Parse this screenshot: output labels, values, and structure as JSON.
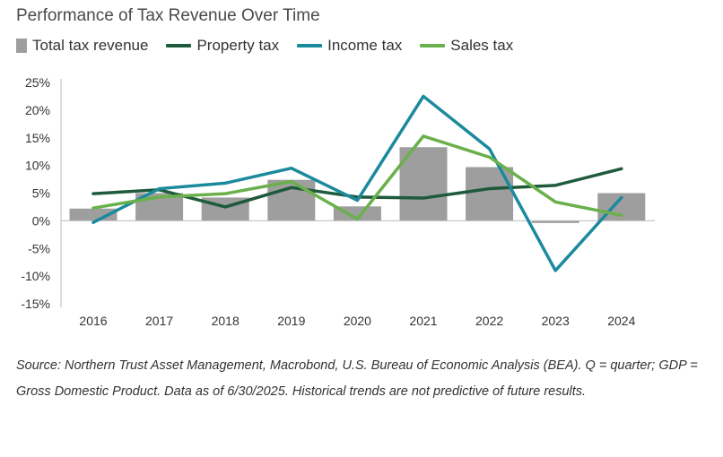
{
  "title": "Performance of Tax Revenue Over Time",
  "source": "Source: Northern Trust Asset Management, Macrobond, U.S. Bureau of Economic Analysis (BEA). Q = quarter; GDP = Gross Domestic Product. Data as of 6/30/2025. Historical trends are not predictive of future results.",
  "legend": [
    {
      "name": "Total tax revenue",
      "color": "#9e9e9e",
      "kind": "bar"
    },
    {
      "name": "Property tax",
      "color": "#1e5a3c",
      "kind": "line"
    },
    {
      "name": "Income tax",
      "color": "#1b8a9c",
      "kind": "line"
    },
    {
      "name": "Sales tax",
      "color": "#6ab04c",
      "kind": "line"
    }
  ],
  "chart_data": {
    "type": "bar",
    "title": "Performance of Tax Revenue Over Time",
    "categories": [
      "2016",
      "2017",
      "2018",
      "2019",
      "2020",
      "2021",
      "2022",
      "2023",
      "2024"
    ],
    "ylim": [
      -15,
      25
    ],
    "yticks": [
      25,
      20,
      15,
      10,
      5,
      0,
      -5,
      -10,
      -15
    ],
    "ytick_labels": [
      "25%",
      "20%",
      "15%",
      "10%",
      "5%",
      "0%",
      "-5%",
      "-10%",
      "-15%"
    ],
    "bars": {
      "name": "Total tax revenue",
      "color": "#9e9e9e",
      "values": [
        2.2,
        5.0,
        4.2,
        7.4,
        2.6,
        13.3,
        9.7,
        -0.4,
        5.0
      ]
    },
    "series": [
      {
        "name": "Property tax",
        "color": "#1e5a3c",
        "values": [
          4.9,
          5.6,
          2.5,
          6.0,
          4.3,
          4.1,
          5.8,
          6.4,
          9.4
        ]
      },
      {
        "name": "Income tax",
        "color": "#1b8a9c",
        "values": [
          -0.3,
          5.8,
          6.8,
          9.5,
          3.7,
          22.5,
          13.0,
          -9.0,
          4.2
        ]
      },
      {
        "name": "Sales tax",
        "color": "#6ab04c",
        "values": [
          2.3,
          4.3,
          4.9,
          7.1,
          0.3,
          15.3,
          11.5,
          3.4,
          1.0
        ]
      }
    ],
    "grid": false,
    "legend_position": "top-left"
  }
}
